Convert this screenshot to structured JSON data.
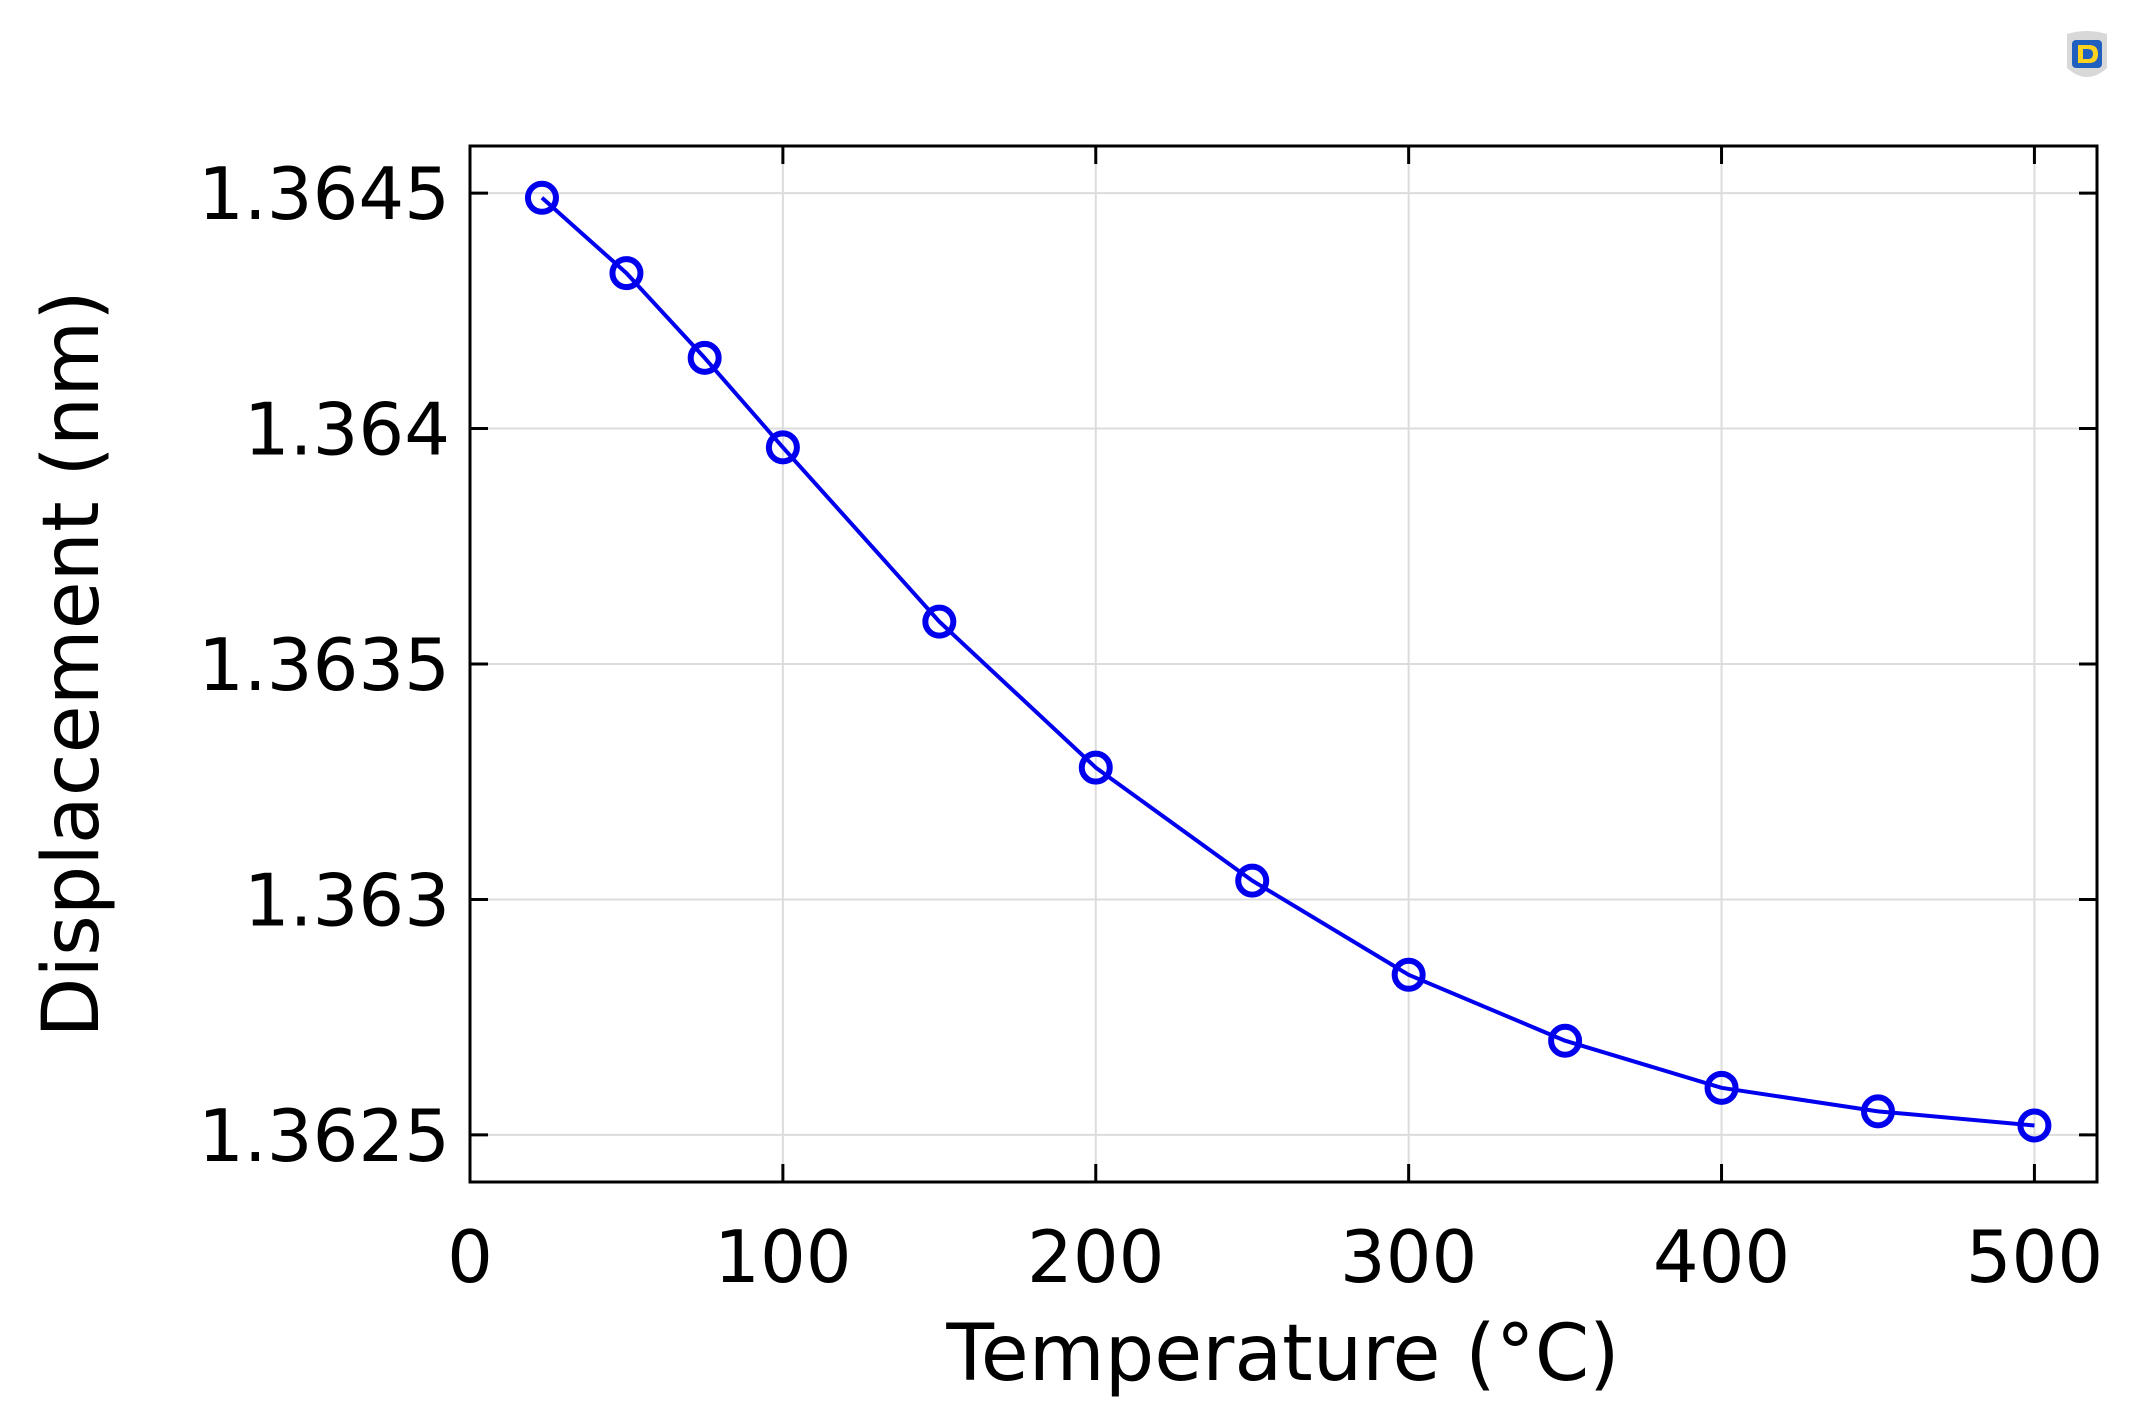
{
  "chart_data": {
    "type": "line",
    "title": "",
    "xlabel": "Temperature (°C)",
    "ylabel": "Displacement (nm)",
    "xlim": [
      0,
      520
    ],
    "ylim": [
      1.3624,
      1.3646
    ],
    "x_ticks": [
      0,
      100,
      200,
      300,
      400,
      500
    ],
    "x_tick_labels": [
      "0",
      "100",
      "200",
      "300",
      "400",
      "500"
    ],
    "y_ticks": [
      1.3625,
      1.363,
      1.3635,
      1.364,
      1.3645
    ],
    "y_tick_labels": [
      "1.3625",
      "1.363",
      "1.3635",
      "1.364",
      "1.3645"
    ],
    "grid": true,
    "legend": "none",
    "series": [
      {
        "color": "#0000ee",
        "marker": "circle",
        "x": [
          23,
          50,
          75,
          100,
          150,
          200,
          250,
          300,
          350,
          400,
          450,
          500
        ],
        "y": [
          1.36449,
          1.36433,
          1.36415,
          1.36396,
          1.36359,
          1.36328,
          1.36304,
          1.36284,
          1.3627,
          1.3626,
          1.36255,
          1.36252
        ]
      }
    ],
    "colors": {
      "line": "#0000ee",
      "grid": "#dcdcdc",
      "axes": "#000000"
    }
  }
}
